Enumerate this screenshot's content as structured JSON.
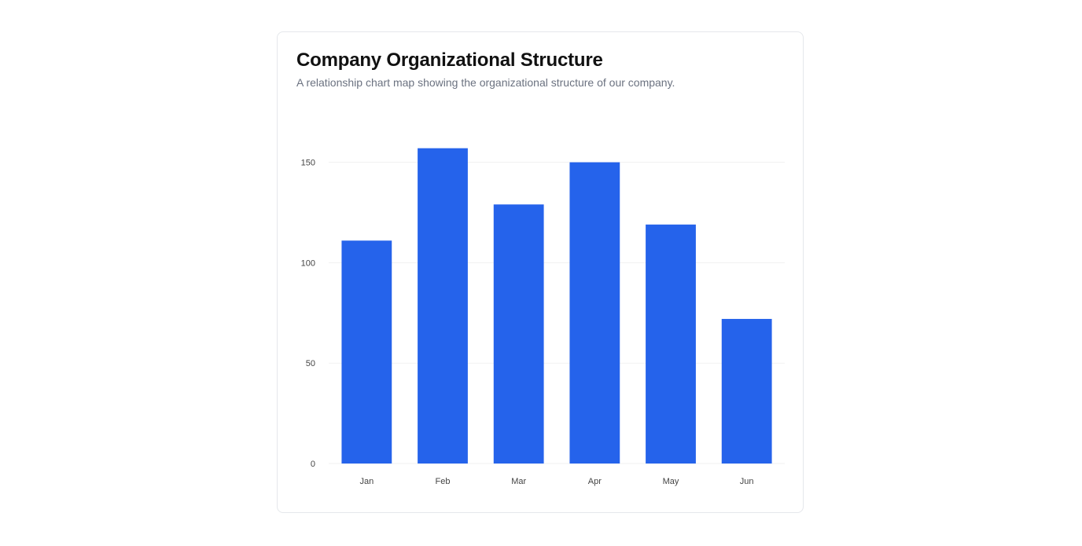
{
  "card": {
    "title": "Company Organizational Structure",
    "subtitle": "A relationship chart map showing the organizational structure of our company."
  },
  "chart_data": {
    "type": "bar",
    "title": "Company Organizational Structure",
    "subtitle": "A relationship chart map showing the organizational structure of our company.",
    "categories": [
      "Jan",
      "Feb",
      "Mar",
      "Apr",
      "May",
      "Jun"
    ],
    "values": [
      111,
      157,
      129,
      150,
      119,
      72
    ],
    "y_ticks": [
      0,
      50,
      100,
      150
    ],
    "ylim": [
      0,
      160
    ],
    "xlabel": "",
    "ylabel": "",
    "grid": true,
    "legend": "none",
    "bar_color": "#2563eb",
    "grid_color": "#f1f1f1"
  }
}
